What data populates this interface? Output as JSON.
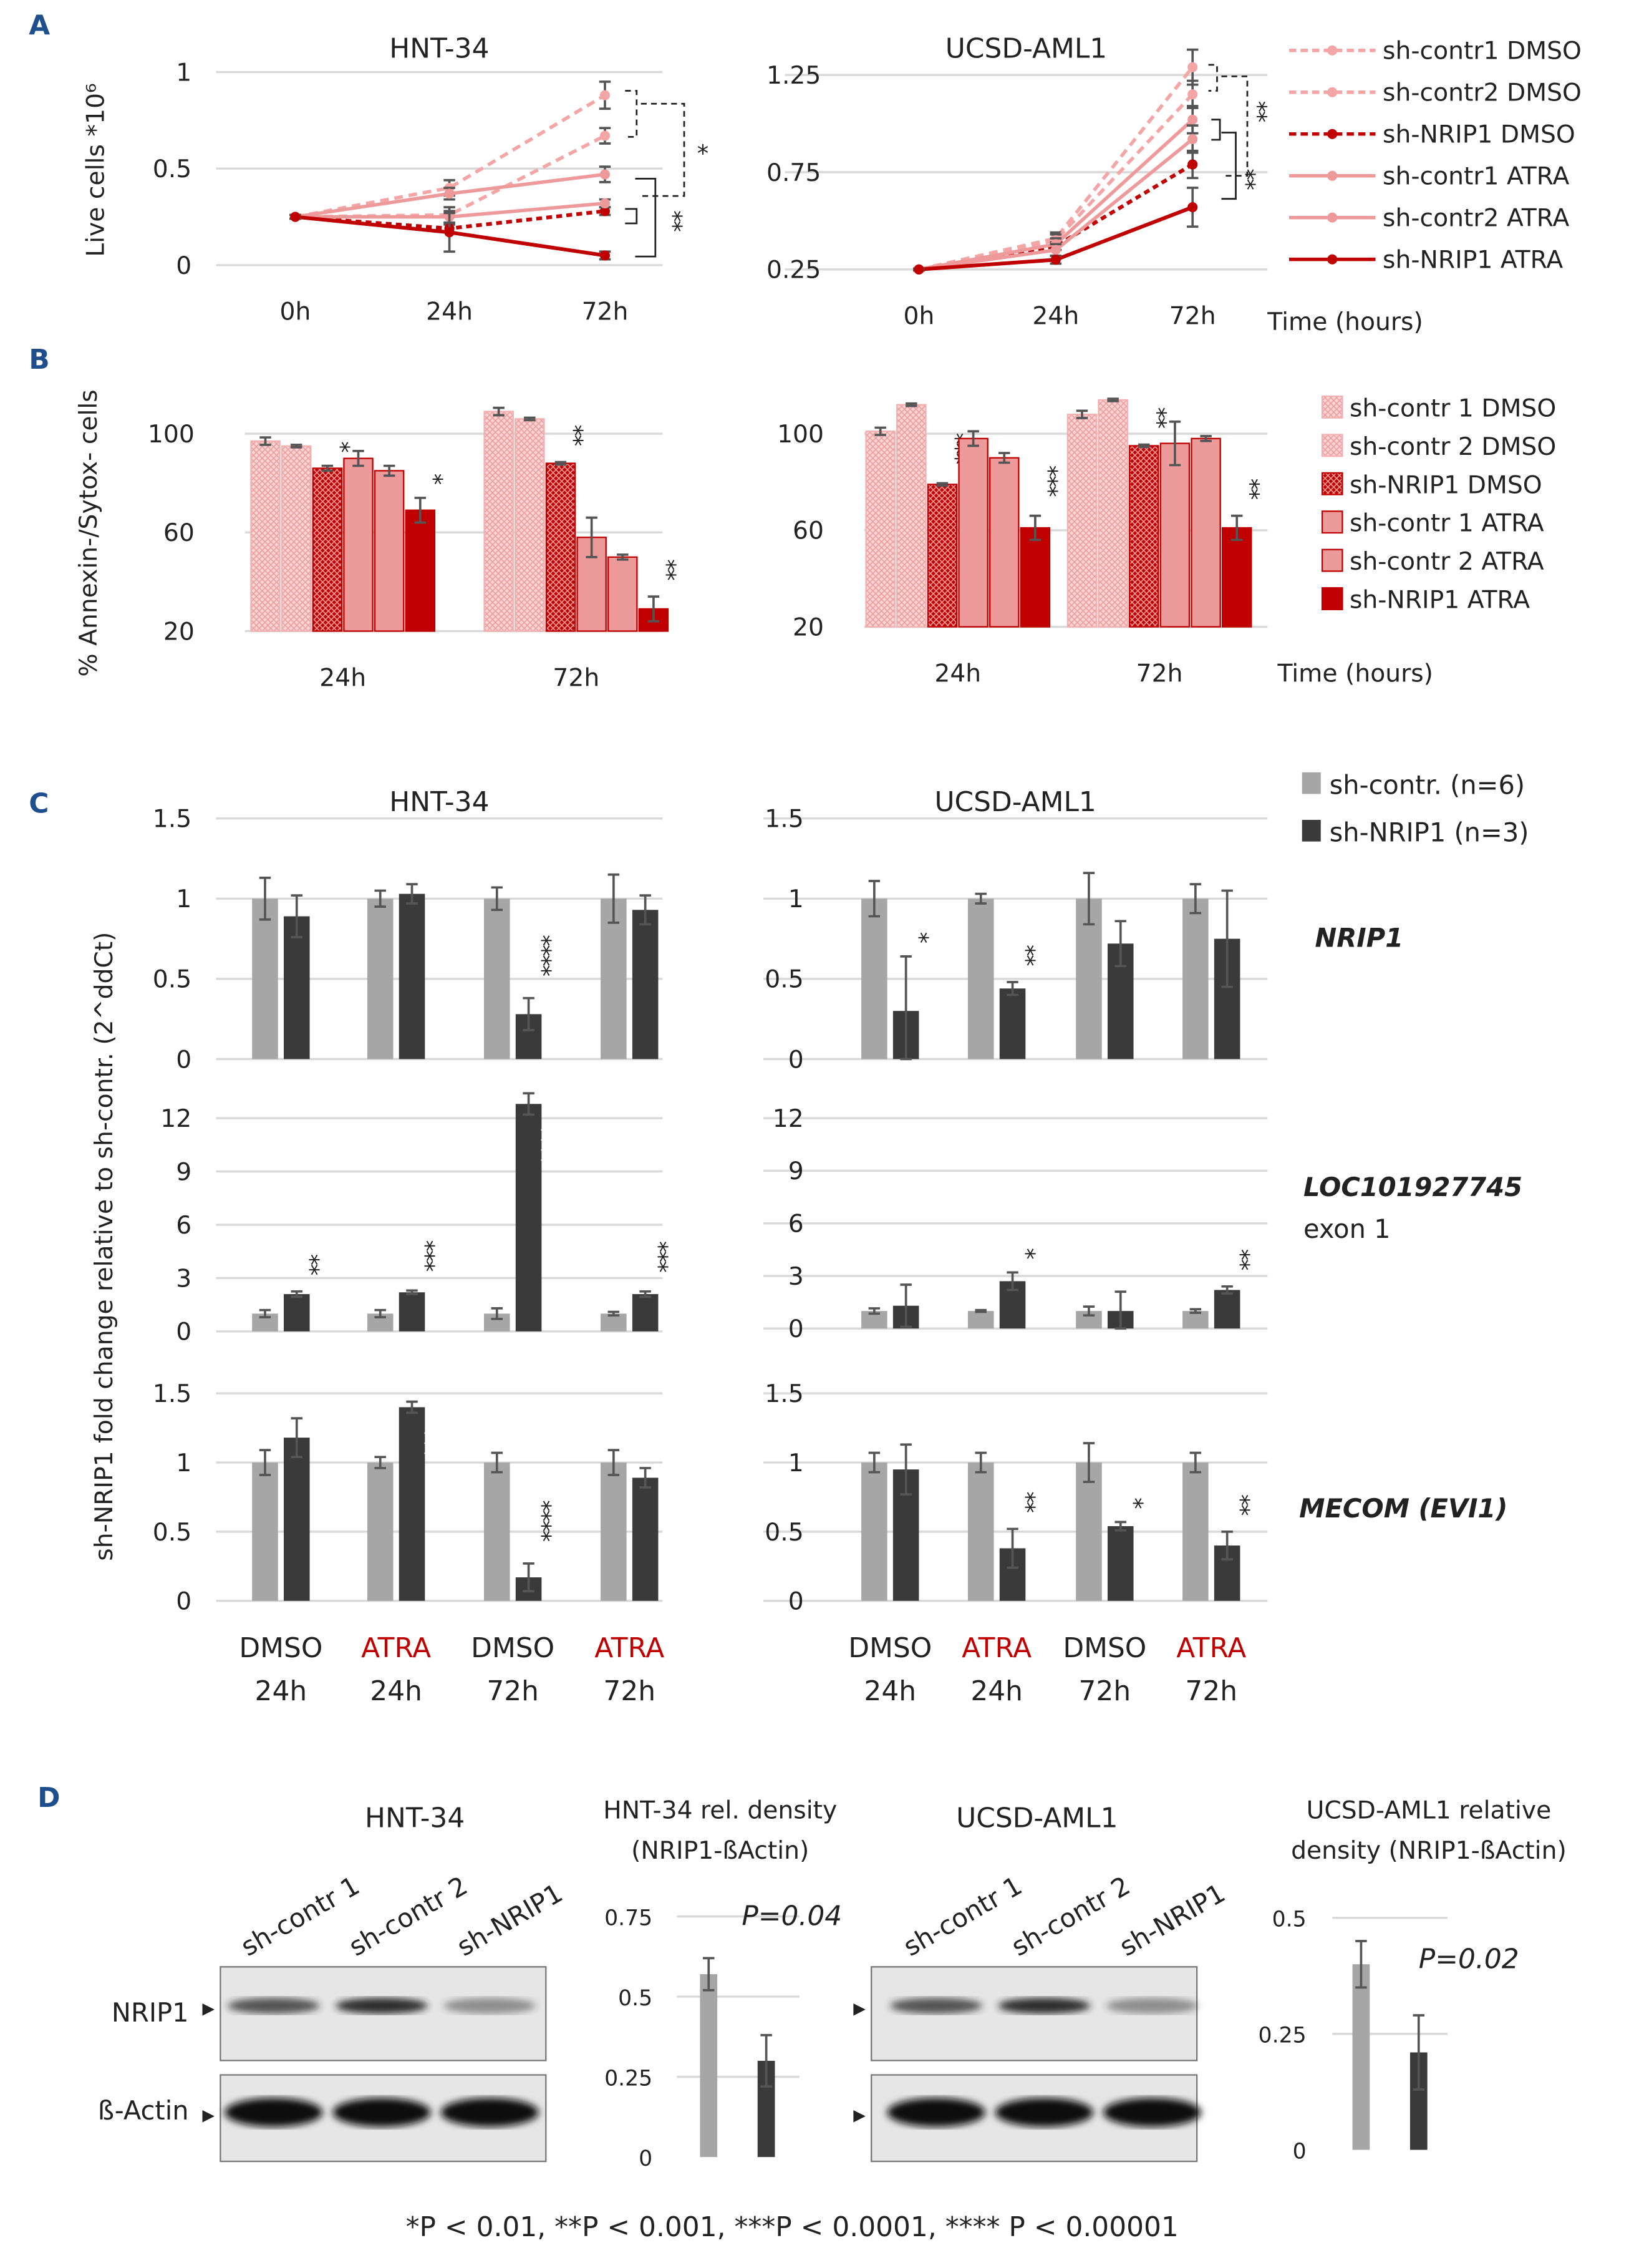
{
  "panels": {
    "a": "A",
    "b": "B",
    "c": "C",
    "d": "D"
  },
  "colors": {
    "light": "#f4a6a6",
    "atra_contr": "#ec9a9a",
    "nrip1": "#c00000",
    "contr_gray": "#a6a6a6",
    "nrip_dark": "#3a3a3a",
    "panel_letter": "#1f4e8c"
  },
  "legend_a": {
    "items": [
      {
        "label": "sh-contr1 DMSO",
        "color": "#f4a6a6",
        "line_style": "dashed"
      },
      {
        "label": "sh-contr2 DMSO",
        "color": "#f4a6a6",
        "line_style": "dashed"
      },
      {
        "label": "sh-NRIP1 DMSO",
        "color": "#c00000",
        "line_style": "dashed"
      },
      {
        "label": "sh-contr1 ATRA",
        "color": "#ee9a9a",
        "line_style": "solid"
      },
      {
        "label": "sh-contr2 ATRA",
        "color": "#ee9a9a",
        "line_style": "solid"
      },
      {
        "label": "sh-NRIP1 ATRA",
        "color": "#c00000",
        "line_style": "solid"
      }
    ],
    "xlabel": "Time (hours)"
  },
  "legend_b": {
    "items": [
      {
        "label": "sh-contr 1 DMSO",
        "fill": "hatched-light"
      },
      {
        "label": "sh-contr 2 DMSO",
        "fill": "hatched-light"
      },
      {
        "label": "sh-NRIP1 DMSO",
        "fill": "hatched-dark"
      },
      {
        "label": "sh-contr 1 ATRA",
        "fill": "solid-light"
      },
      {
        "label": "sh-contr 2 ATRA",
        "fill": "solid-light"
      },
      {
        "label": "sh-NRIP1 ATRA",
        "fill": "solid-dark"
      }
    ],
    "xlabel": "Time (hours)"
  },
  "legend_c": {
    "items": [
      {
        "label": "sh-contr. (n=6)",
        "color": "#a6a6a6"
      },
      {
        "label": "sh-NRIP1 (n=3)",
        "color": "#3a3a3a"
      }
    ]
  },
  "genes": {
    "nrip1": "NRIP1",
    "loc": "LOC101927745",
    "loc_sub": "exon 1",
    "mecom": "MECOM (EVI1)"
  },
  "c_xlabels": [
    {
      "treatment": "DMSO",
      "time": "24h",
      "color": "#222222"
    },
    {
      "treatment": "ATRA",
      "time": "24h",
      "color": "#c00000"
    },
    {
      "treatment": "DMSO",
      "time": "72h",
      "color": "#222222"
    },
    {
      "treatment": "ATRA",
      "time": "72h",
      "color": "#c00000"
    }
  ],
  "c_ylabel": "sh-NRIP1 fold change relative to sh-contr. (2^ddCt)",
  "blots": {
    "hnt_title": "HNT-34",
    "ucsd_title": "UCSD-AML1",
    "lanes": [
      "sh-contr 1",
      "sh-contr 2",
      "sh-NRIP1"
    ],
    "row_nrip1": "NRIP1",
    "row_actin": "ß-Actin",
    "arrow": "▸"
  },
  "footnote": "*P < 0.01,   **P < 0.001, ***P < 0.0001, **** P < 0.00001",
  "chart_data": [
    {
      "type": "line",
      "title": "HNT-34",
      "ylabel": "Live cells *10⁶",
      "x": [
        "0h",
        "24h",
        "72h"
      ],
      "yticks": [
        0,
        0.5,
        1
      ],
      "ylim": [
        0,
        1
      ],
      "grid": true,
      "series": [
        {
          "name": "sh-contr1 DMSO",
          "values": [
            0.25,
            0.4,
            0.88
          ],
          "errors": [
            0.01,
            0.04,
            0.07
          ]
        },
        {
          "name": "sh-contr2 DMSO",
          "values": [
            0.25,
            0.26,
            0.67
          ],
          "errors": [
            0.01,
            0.04,
            0.04
          ]
        },
        {
          "name": "sh-NRIP1 DMSO",
          "values": [
            0.25,
            0.19,
            0.28
          ],
          "errors": [
            0.01,
            0.02,
            0.02
          ]
        },
        {
          "name": "sh-contr1 ATRA",
          "values": [
            0.25,
            0.37,
            0.47
          ],
          "errors": [
            0.01,
            0.03,
            0.04
          ]
        },
        {
          "name": "sh-contr2 ATRA",
          "values": [
            0.25,
            0.25,
            0.32
          ],
          "errors": [
            0.01,
            0.03,
            0.02
          ]
        },
        {
          "name": "sh-NRIP1 ATRA",
          "values": [
            0.25,
            0.17,
            0.05
          ],
          "errors": [
            0.01,
            0.1,
            0.02
          ]
        }
      ],
      "significance": {
        "dmso": "*",
        "atra": "**"
      }
    },
    {
      "type": "line",
      "title": "UCSD-AML1",
      "x": [
        "0h",
        "24h",
        "72h"
      ],
      "yticks": [
        0.25,
        0.75,
        1.25
      ],
      "ylim": [
        0.25,
        1.25
      ],
      "grid": true,
      "series": [
        {
          "name": "sh-contr1 DMSO",
          "values": [
            0.25,
            0.41,
            1.29
          ],
          "errors": [
            0.005,
            0.03,
            0.09
          ]
        },
        {
          "name": "sh-contr2 DMSO",
          "values": [
            0.25,
            0.4,
            1.15
          ],
          "errors": [
            0.005,
            0.03,
            0.07
          ]
        },
        {
          "name": "sh-NRIP1 DMSO",
          "values": [
            0.25,
            0.37,
            0.79
          ],
          "errors": [
            0.005,
            0.02,
            0.07
          ]
        },
        {
          "name": "sh-contr1 ATRA",
          "values": [
            0.25,
            0.38,
            1.02
          ],
          "errors": [
            0.005,
            0.03,
            0.07
          ]
        },
        {
          "name": "sh-contr2 ATRA",
          "values": [
            0.25,
            0.35,
            0.92
          ],
          "errors": [
            0.005,
            0.03,
            0.07
          ]
        },
        {
          "name": "sh-NRIP1 ATRA",
          "values": [
            0.25,
            0.3,
            0.57
          ],
          "errors": [
            0.005,
            0.02,
            0.1
          ]
        }
      ],
      "significance": {
        "dmso": "**",
        "atra": "**"
      }
    },
    {
      "type": "bar",
      "ylabel": "% Annexin-/Sytox- cells",
      "categories": [
        "24h",
        "72h"
      ],
      "yticks": [
        20,
        60,
        100
      ],
      "ylim": [
        20,
        100
      ],
      "grid": true,
      "values": [
        [
          97,
          109
        ],
        [
          95,
          106
        ],
        [
          86,
          88
        ],
        [
          90,
          58
        ],
        [
          85,
          50
        ],
        [
          69,
          29
        ]
      ],
      "errors": [
        [
          1.5,
          1.5
        ],
        [
          0.5,
          0.5
        ],
        [
          1,
          0.5
        ],
        [
          3,
          8
        ],
        [
          2,
          1
        ],
        [
          5,
          5
        ]
      ],
      "stars": [
        [
          "",
          ""
        ],
        [
          "",
          ""
        ],
        [
          "*",
          "**"
        ],
        [
          "",
          ""
        ],
        [
          "",
          ""
        ],
        [
          "*",
          "**"
        ]
      ]
    },
    {
      "type": "bar",
      "categories": [
        "24h",
        "72h"
      ],
      "yticks": [
        20,
        60,
        100
      ],
      "ylim": [
        20,
        100
      ],
      "grid": true,
      "values": [
        [
          101,
          108
        ],
        [
          112,
          114
        ],
        [
          79,
          95
        ],
        [
          98,
          96
        ],
        [
          90,
          98
        ],
        [
          61,
          61
        ]
      ],
      "errors": [
        [
          1.5,
          1.5
        ],
        [
          0.5,
          0.5
        ],
        [
          0.5,
          0.5
        ],
        [
          3,
          9
        ],
        [
          2,
          1
        ],
        [
          5,
          5
        ]
      ],
      "stars": [
        [
          "",
          ""
        ],
        [
          "",
          ""
        ],
        [
          "***",
          "**"
        ],
        [
          "",
          ""
        ],
        [
          "",
          ""
        ],
        [
          "***",
          "**"
        ]
      ]
    },
    {
      "type": "bar",
      "title": "HNT-34",
      "gene": "NRIP1",
      "yticks": [
        0,
        0.5,
        1,
        1.5
      ],
      "ylim": [
        0,
        1.5
      ],
      "contr": [
        1,
        1,
        1,
        1
      ],
      "contr_err": [
        0.13,
        0.05,
        0.07,
        0.15
      ],
      "nrip1": [
        0.89,
        1.03,
        0.28,
        0.93
      ],
      "nrip1_err": [
        0.13,
        0.06,
        0.1,
        0.09
      ],
      "stars": [
        "",
        "",
        "****",
        ""
      ],
      "stars_inside": [
        false,
        false,
        false,
        false
      ]
    },
    {
      "type": "bar",
      "title": "UCSD-AML1",
      "gene": "NRIP1",
      "yticks": [
        0,
        0.5,
        1,
        1.5
      ],
      "ylim": [
        0,
        1.5
      ],
      "contr": [
        1,
        1,
        1,
        1
      ],
      "contr_err": [
        0.11,
        0.03,
        0.16,
        0.09
      ],
      "nrip1": [
        0.3,
        0.44,
        0.72,
        0.75
      ],
      "nrip1_err": [
        0.34,
        0.04,
        0.14,
        0.3
      ],
      "stars": [
        "*",
        "**",
        "",
        ""
      ],
      "stars_inside": [
        false,
        false,
        false,
        false
      ]
    },
    {
      "type": "bar",
      "gene": "LOC101927745",
      "yticks": [
        0,
        3,
        6,
        9,
        12
      ],
      "ylim": [
        0,
        12
      ],
      "contr": [
        1,
        1,
        1,
        1
      ],
      "contr_err": [
        0.2,
        0.2,
        0.3,
        0.1
      ],
      "nrip1": [
        2.1,
        2.2,
        12.8,
        2.1
      ],
      "nrip1_err": [
        0.15,
        0.1,
        0.6,
        0.15
      ],
      "stars": [
        "**",
        "***",
        "****",
        "***"
      ],
      "stars_inside": [
        false,
        false,
        true,
        false
      ]
    },
    {
      "type": "bar",
      "gene": "LOC101927745",
      "yticks": [
        0,
        3,
        6,
        9,
        12
      ],
      "ylim": [
        0,
        12
      ],
      "contr": [
        1,
        1,
        1,
        1
      ],
      "contr_err": [
        0.15,
        0.05,
        0.25,
        0.1
      ],
      "nrip1": [
        1.3,
        2.7,
        1.0,
        2.2
      ],
      "nrip1_err": [
        1.2,
        0.5,
        1.1,
        0.2
      ],
      "stars": [
        "",
        "*",
        "",
        "**"
      ],
      "stars_inside": [
        false,
        false,
        false,
        false
      ]
    },
    {
      "type": "bar",
      "gene": "MECOM (EVI1)",
      "yticks": [
        0,
        0.5,
        1,
        1.5
      ],
      "ylim": [
        0,
        1.5
      ],
      "contr": [
        1,
        1,
        1,
        1
      ],
      "contr_err": [
        0.09,
        0.04,
        0.07,
        0.09
      ],
      "nrip1": [
        1.18,
        1.4,
        0.17,
        0.89
      ],
      "nrip1_err": [
        0.14,
        0.04,
        0.1,
        0.07
      ],
      "stars": [
        "",
        "***",
        "****",
        ""
      ],
      "stars_inside": [
        false,
        true,
        false,
        false
      ]
    },
    {
      "type": "bar",
      "gene": "MECOM (EVI1)",
      "yticks": [
        0,
        0.5,
        1,
        1.5
      ],
      "ylim": [
        0,
        1.5
      ],
      "contr": [
        1,
        1,
        1,
        1
      ],
      "contr_err": [
        0.07,
        0.07,
        0.14,
        0.07
      ],
      "nrip1": [
        0.95,
        0.38,
        0.54,
        0.4
      ],
      "nrip1_err": [
        0.18,
        0.14,
        0.03,
        0.1
      ],
      "stars": [
        "",
        "**",
        "*",
        "**"
      ],
      "stars_inside": [
        false,
        false,
        false,
        false
      ]
    },
    {
      "type": "bar",
      "title": [
        "HNT-34 rel. density",
        "(NRIP1-ßActin)"
      ],
      "yticks": [
        0,
        0.25,
        0.5,
        0.75
      ],
      "ylim": [
        0,
        0.75
      ],
      "values": [
        0.57,
        0.3
      ],
      "errors": [
        0.05,
        0.08
      ],
      "pvalue": "P=0.04"
    },
    {
      "type": "bar",
      "title": [
        "UCSD-AML1 relative",
        "density (NRIP1-ßActin)"
      ],
      "yticks": [
        0,
        0.25,
        0.5
      ],
      "ylim": [
        0,
        0.5
      ],
      "values": [
        0.4,
        0.21
      ],
      "errors": [
        0.05,
        0.08
      ],
      "pvalue": "P=0.02"
    }
  ]
}
